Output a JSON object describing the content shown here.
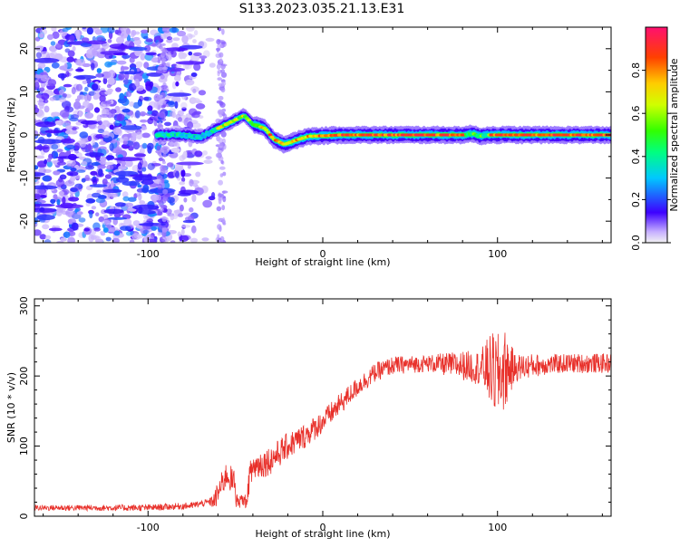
{
  "title": "S133.2023.035.21.13.E31",
  "chart_data": [
    {
      "type": "heatmap",
      "xlabel": "Height of straight line (km)",
      "ylabel": "Frequency (Hz)",
      "xlim": [
        -165,
        165
      ],
      "ylim": [
        -25,
        25
      ],
      "xticks": [
        -100,
        0,
        100
      ],
      "yticks": [
        -20,
        -10,
        0,
        10,
        20
      ],
      "colorbar": {
        "label": "Normalized spectral amplitude",
        "range": [
          0,
          1
        ],
        "ticks": [
          "0.0",
          "0.2",
          "0.4",
          "0.6",
          "0.8"
        ]
      },
      "ridge": [
        [
          -95,
          0.0
        ],
        [
          -80,
          0.0
        ],
        [
          -70,
          -0.5
        ],
        [
          -60,
          1.5
        ],
        [
          -50,
          3.5
        ],
        [
          -45,
          4.5
        ],
        [
          -40,
          2.5
        ],
        [
          -33,
          1.5
        ],
        [
          -28,
          -1.0
        ],
        [
          -22,
          -2.2
        ],
        [
          -15,
          -1.2
        ],
        [
          -8,
          -0.3
        ],
        [
          0,
          -0.2
        ],
        [
          10,
          0.0
        ],
        [
          50,
          0.0
        ],
        [
          80,
          0.0
        ],
        [
          86,
          0.3
        ],
        [
          90,
          -0.3
        ],
        [
          95,
          0.0
        ],
        [
          165,
          0.0
        ]
      ]
    },
    {
      "type": "line",
      "xlabel": "Height of straight line (km)",
      "ylabel": "SNR (10 * v/v)",
      "xlim": [
        -165,
        165
      ],
      "ylim": [
        0,
        310
      ],
      "xticks": [
        -100,
        0,
        100
      ],
      "yticks": [
        0,
        100,
        200,
        300
      ],
      "color": "#e8302a",
      "trend": [
        [
          -165,
          12
        ],
        [
          -130,
          12
        ],
        [
          -100,
          12
        ],
        [
          -75,
          15
        ],
        [
          -62,
          22
        ],
        [
          -55,
          60
        ],
        [
          -50,
          45
        ],
        [
          -45,
          30
        ],
        [
          -40,
          70
        ],
        [
          -30,
          80
        ],
        [
          -20,
          100
        ],
        [
          -10,
          115
        ],
        [
          0,
          135
        ],
        [
          10,
          160
        ],
        [
          20,
          185
        ],
        [
          30,
          205
        ],
        [
          40,
          215
        ],
        [
          60,
          218
        ],
        [
          80,
          215
        ],
        [
          95,
          210
        ],
        [
          100,
          200
        ],
        [
          105,
          210
        ],
        [
          120,
          215
        ],
        [
          140,
          218
        ],
        [
          165,
          218
        ]
      ],
      "noise": [
        [
          -165,
          4
        ],
        [
          -65,
          5
        ],
        [
          -60,
          18
        ],
        [
          -40,
          22
        ],
        [
          -10,
          18
        ],
        [
          20,
          14
        ],
        [
          60,
          12
        ],
        [
          90,
          25
        ],
        [
          98,
          60
        ],
        [
          104,
          60
        ],
        [
          110,
          20
        ],
        [
          130,
          14
        ],
        [
          165,
          14
        ]
      ]
    }
  ]
}
